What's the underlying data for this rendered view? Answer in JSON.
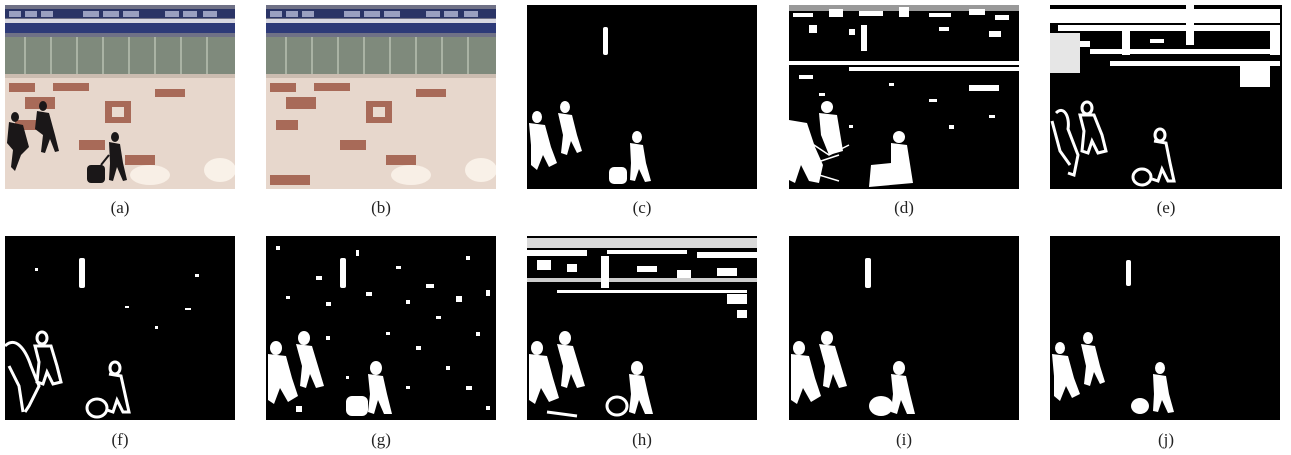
{
  "figure": {
    "panels": [
      {
        "id": "a",
        "label": "(a)",
        "kind": "input-frame"
      },
      {
        "id": "b",
        "label": "(b)",
        "kind": "background-frame"
      },
      {
        "id": "c",
        "label": "(c)",
        "kind": "mask-clean"
      },
      {
        "id": "d",
        "label": "(d)",
        "kind": "mask-noisy-heavy"
      },
      {
        "id": "e",
        "label": "(e)",
        "kind": "mask-outline-top-noise"
      },
      {
        "id": "f",
        "label": "(f)",
        "kind": "mask-outline-sparse"
      },
      {
        "id": "g",
        "label": "(g)",
        "kind": "mask-speckle"
      },
      {
        "id": "h",
        "label": "(h)",
        "kind": "mask-top-noise"
      },
      {
        "id": "i",
        "label": "(i)",
        "kind": "mask-clean"
      },
      {
        "id": "j",
        "label": "(j)",
        "kind": "mask-clean"
      }
    ]
  }
}
